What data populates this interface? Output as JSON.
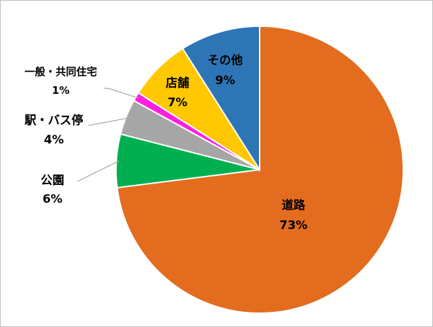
{
  "chart_data": {
    "type": "pie",
    "title": "",
    "start_angle_deg": 0,
    "direction": "clockwise",
    "slices": [
      {
        "label": "道路",
        "value": 73,
        "value_label": "73%",
        "color": "#e36c1f"
      },
      {
        "label": "公園",
        "value": 6,
        "value_label": "6%",
        "color": "#00b050"
      },
      {
        "label": "駅・バス停",
        "value": 4,
        "value_label": "4%",
        "color": "#a6a6a6"
      },
      {
        "label": "一般・共同住宅",
        "value": 1,
        "value_label": "1%",
        "color": "#ff1fde"
      },
      {
        "label": "店舗",
        "value": 7,
        "value_label": "7%",
        "color": "#ffc800"
      },
      {
        "label": "その他",
        "value": 9,
        "value_label": "9%",
        "color": "#2e75b6"
      }
    ]
  }
}
